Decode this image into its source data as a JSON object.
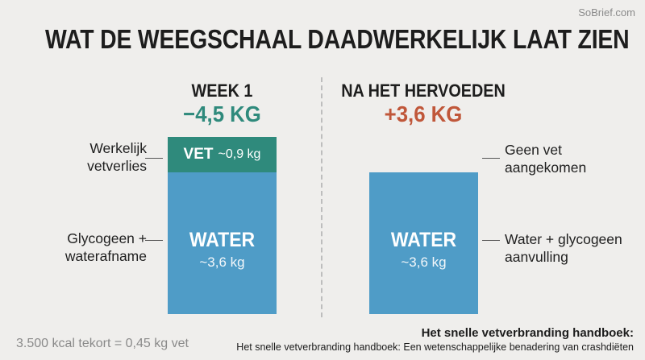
{
  "watermark": "SoBrief.com",
  "chart_data": {
    "type": "bar",
    "title": "WAT DE WEEGSCHAAL DAADWERKELIJK LAAT ZIEN",
    "unit": "kg",
    "categories": [
      "WEEK 1",
      "NA HET HERVOEDEN"
    ],
    "deltas": [
      "−4,5 KG",
      "+3,6 KG"
    ],
    "series": [
      {
        "name": "WATER",
        "values": [
          3.6,
          3.6
        ],
        "labels": [
          "~3,6 kg",
          "~3,6 kg"
        ]
      },
      {
        "name": "VET",
        "values": [
          0.9,
          0
        ],
        "labels": [
          "~0,9 kg",
          ""
        ]
      }
    ],
    "annotations": {
      "left": [
        "Werkelijk\nvetverlies",
        "Glycogeen +\nwaterafname"
      ],
      "right": [
        "Geen vet\naangekomen",
        "Water + glycogeen\naanvulling"
      ]
    },
    "colors": {
      "water": "#4f9cc7",
      "fat": "#2f8a7c",
      "loss": "#2f8a7c",
      "gain": "#c0573a"
    }
  },
  "footnote": "3.500 kcal tekort = 0,45 kg vet",
  "source": {
    "title": "Het snelle vetverbranding handboek:",
    "subtitle": "Het snelle vetverbranding handboek: Een wetenschappelijke benadering van crashdiëten"
  }
}
